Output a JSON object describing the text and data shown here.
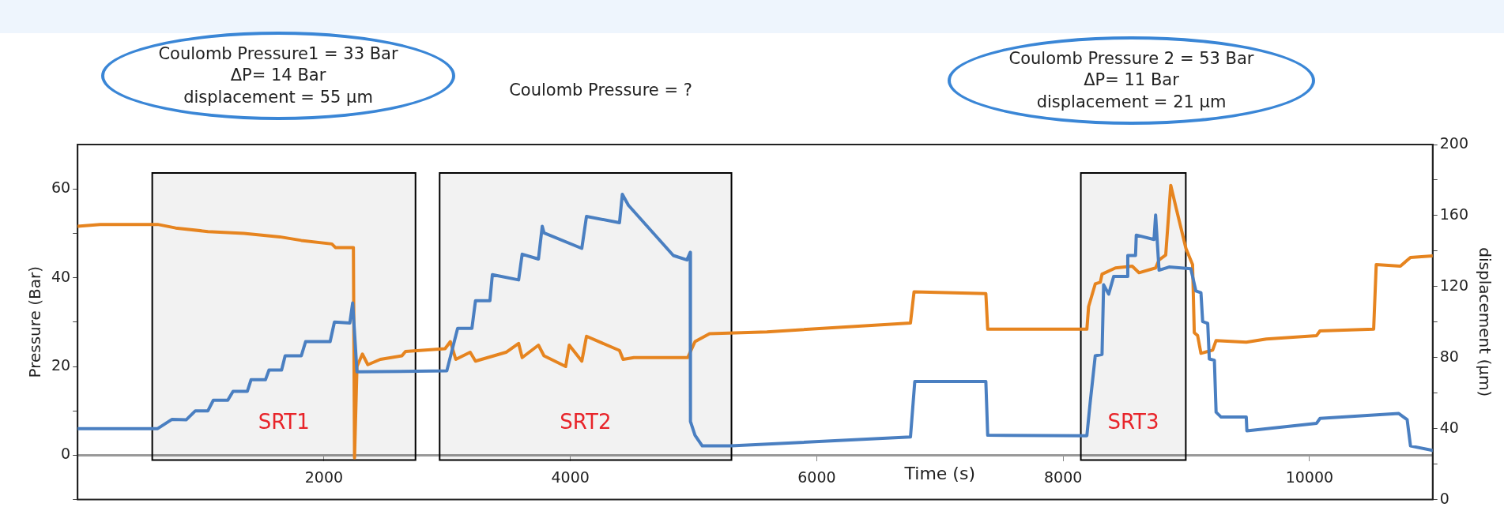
{
  "chart_data": {
    "type": "line",
    "xlabel": "Time (s)",
    "ylabel": "Pressure (Bar)",
    "y2label": "displacement (µm)",
    "xlim": [
      0,
      11000
    ],
    "xticks": [
      2000,
      4000,
      6000,
      8000,
      10000
    ],
    "ylim": [
      -10,
      70
    ],
    "yticks": [
      {
        "value": -10,
        "label": null
      },
      0,
      {
        "value": 10,
        "label": null
      },
      20,
      {
        "value": 30,
        "label": null
      },
      40,
      {
        "value": 50,
        "label": null
      },
      60
    ],
    "y2lim": [
      0,
      200
    ],
    "y2ticks": [
      0,
      {
        "value": 20,
        "label": null
      },
      40,
      {
        "value": 60,
        "label": null
      },
      80,
      {
        "value": 100,
        "label": null
      },
      120,
      {
        "value": 140,
        "label": null
      },
      160,
      {
        "value": 180,
        "label": null
      },
      200
    ],
    "grid": false,
    "legend": false,
    "marker": "none",
    "line_style": "solid",
    "series": [
      {
        "color": "#4a7fc1",
        "axis": "y",
        "x": [
          0,
          650,
          767,
          883,
          956,
          1058,
          1102,
          1219,
          1262,
          1378,
          1408,
          1525,
          1554,
          1656,
          1685,
          1816,
          1851,
          2050,
          2085,
          2210,
          2233,
          2268,
          2997,
          3085,
          3201,
          3230,
          3347,
          3367,
          3580,
          3609,
          3741,
          3772,
          3786,
          4093,
          4131,
          4399,
          4422,
          4472,
          4836,
          4947,
          4973,
          4975,
          5012,
          5071,
          5304,
          6761,
          6796,
          7373,
          7388,
          8193,
          8220,
          8261,
          8316,
          8329,
          8370,
          8411,
          8520,
          8525,
          8588,
          8594,
          8738,
          8751,
          8779,
          8860,
          9037,
          9078,
          9119,
          9133,
          9174,
          9187,
          9228,
          9242,
          9283,
          9487,
          9492,
          10058,
          10085,
          10725,
          10793,
          10820,
          11000
        ],
        "values": [
          6,
          6,
          8.1,
          8,
          10,
          10,
          12.4,
          12.4,
          14.4,
          14.4,
          17,
          17,
          19.2,
          19.2,
          22.4,
          22.4,
          25.6,
          25.6,
          30,
          29.8,
          34.3,
          18.8,
          19,
          28.6,
          28.6,
          34.8,
          34.8,
          40.7,
          39.5,
          45.3,
          44.2,
          51.6,
          50.1,
          46.6,
          53.8,
          52.4,
          58.8,
          56.3,
          45,
          44,
          45.7,
          7.6,
          4.5,
          2.1,
          2.1,
          4.1,
          16.6,
          16.6,
          4.5,
          4.4,
          11.9,
          22.4,
          22.7,
          38.4,
          36.3,
          40.3,
          40.3,
          45,
          45,
          49.6,
          48.6,
          54.1,
          41.7,
          42.4,
          42,
          37,
          36.6,
          30.1,
          29.7,
          21.7,
          21.4,
          9.7,
          8.6,
          8.6,
          5.5,
          7.2,
          8.3,
          9.4,
          8,
          2.1,
          1.1
        ]
      },
      {
        "color": "#e6841f",
        "axis": "y2",
        "x": [
          0,
          184,
          650,
          796,
          1058,
          1350,
          1641,
          1816,
          2064,
          2093,
          2239,
          2248,
          2268,
          2312,
          2356,
          2458,
          2633,
          2662,
          2983,
          3026,
          3070,
          3187,
          3230,
          3478,
          3580,
          3609,
          3741,
          3786,
          3962,
          3991,
          4093,
          4131,
          4399,
          4428,
          4516,
          4953,
          5012,
          5130,
          5596,
          6761,
          6790,
          7373,
          7388,
          8193,
          8207,
          8261,
          8302,
          8316,
          8425,
          8561,
          8616,
          8751,
          8779,
          8833,
          8874,
          8915,
          8997,
          9051,
          9065,
          9092,
          9119,
          9214,
          9242,
          9487,
          9650,
          10058,
          10085,
          10521,
          10542,
          10738,
          10820,
          11000
        ],
        "values": [
          154,
          155,
          155,
          153,
          151,
          150,
          148,
          146,
          144,
          142,
          142,
          23.5,
          75,
          82,
          76,
          79,
          81,
          83.5,
          85,
          89,
          79,
          83,
          78,
          83,
          88,
          80,
          87,
          81,
          75,
          87,
          78,
          92,
          84,
          79,
          80,
          80,
          89,
          93.5,
          94.5,
          99.5,
          117,
          116,
          96,
          96,
          108.7,
          121.5,
          122.4,
          127,
          130.5,
          131.5,
          127.8,
          130.5,
          135,
          137.8,
          177,
          165,
          141.5,
          132.4,
          94,
          92.4,
          82.4,
          84.2,
          89.6,
          88.7,
          90.5,
          92.4,
          95,
          96,
          132.4,
          131.5,
          136.4,
          137.3
        ]
      }
    ],
    "bands": [
      {
        "axis": "x",
        "from": 606,
        "to": 2743,
        "label": "SRT1",
        "color": "#000000"
      },
      {
        "axis": "x",
        "from": 2939,
        "to": 5308,
        "label": "SRT2",
        "color": "#000000"
      },
      {
        "axis": "x",
        "from": 8144,
        "to": 8996,
        "label": "SRT3",
        "color": "#000000"
      }
    ],
    "annotations": [
      "Coulomb Pressure1 = 33 Bar\nΔP= 14 Bar\ndisplacement = 55 µm",
      "Coulomb Pressure = ?",
      "Coulomb Pressure 2 = 53 Bar\nΔP= 11 Bar\ndisplacement = 21 µm"
    ]
  }
}
